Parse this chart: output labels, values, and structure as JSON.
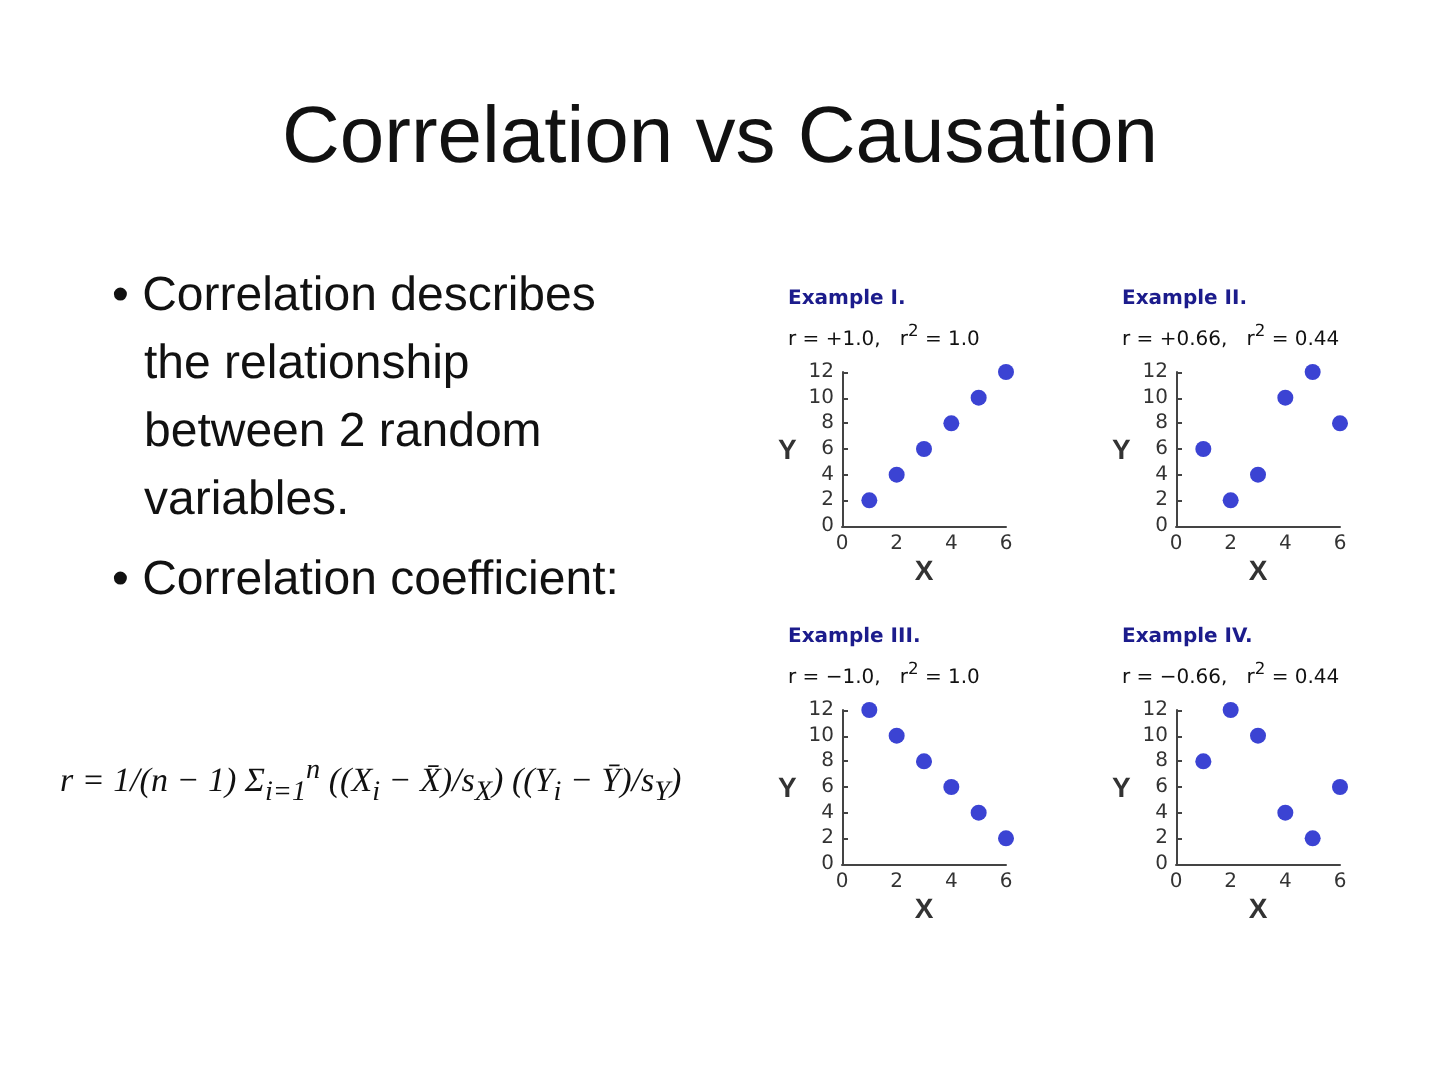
{
  "chart_data": [
    {
      "type": "other",
      "title": "Correlation vs Causation",
      "annotations": [
        "• Correlation describes the relationship between 2 random variables.",
        "• Correlation coefficient:",
        "r = 1/(n − 1) Σ$_{i=1}$$^{n}$ ((X$_{i}$ − X̄)/s$_{X}$) ((Y$_{i}$ − Ȳ)/s$_{Y}$)"
      ]
    },
    {
      "type": "scatter",
      "title": "Example I.",
      "subtitle": "r = +1.0,   r$^{2}$ = 1.0",
      "xlabel": "X",
      "ylabel": "Y",
      "x": [
        1,
        2,
        3,
        4,
        5,
        6
      ],
      "values": [
        2,
        4,
        6,
        8,
        10,
        12
      ],
      "color": "#0a14c8",
      "marker": "circle",
      "xlim": [
        0,
        6
      ],
      "xticks": [
        0,
        2,
        4,
        6
      ],
      "ylim": [
        0,
        12
      ],
      "yticks": [
        0,
        2,
        4,
        6,
        8,
        10,
        12
      ]
    },
    {
      "type": "scatter",
      "title": "Example II.",
      "subtitle": "r = +0.66,   r$^{2}$ = 0.44",
      "xlabel": "X",
      "ylabel": "Y",
      "x": [
        1,
        2,
        3,
        4,
        5,
        6
      ],
      "values": [
        6,
        2,
        4,
        10,
        12,
        8
      ],
      "color": "#0a14c8",
      "marker": "circle",
      "xlim": [
        0,
        6
      ],
      "xticks": [
        0,
        2,
        4,
        6
      ],
      "ylim": [
        0,
        12
      ],
      "yticks": [
        0,
        2,
        4,
        6,
        8,
        10,
        12
      ]
    },
    {
      "type": "scatter",
      "title": "Example III.",
      "subtitle": "r = −1.0,   r$^{2}$ = 1.0",
      "xlabel": "X",
      "ylabel": "Y",
      "x": [
        1,
        2,
        3,
        4,
        5,
        6
      ],
      "values": [
        12,
        10,
        8,
        6,
        4,
        2
      ],
      "color": "#0a14c8",
      "marker": "circle",
      "xlim": [
        0,
        6
      ],
      "xticks": [
        0,
        2,
        4,
        6
      ],
      "ylim": [
        0,
        12
      ],
      "yticks": [
        0,
        2,
        4,
        6,
        8,
        10,
        12
      ]
    },
    {
      "type": "scatter",
      "title": "Example IV.",
      "subtitle": "r = −0.66,   r$^{2}$ = 0.44",
      "xlabel": "X",
      "ylabel": "Y",
      "x": [
        1,
        2,
        3,
        4,
        5,
        6
      ],
      "values": [
        8,
        12,
        10,
        4,
        2,
        6
      ],
      "color": "#0a14c8",
      "marker": "circle",
      "xlim": [
        0,
        6
      ],
      "xticks": [
        0,
        2,
        4,
        6
      ],
      "ylim": [
        0,
        12
      ],
      "yticks": [
        0,
        2,
        4,
        6,
        8,
        10,
        12
      ]
    }
  ]
}
